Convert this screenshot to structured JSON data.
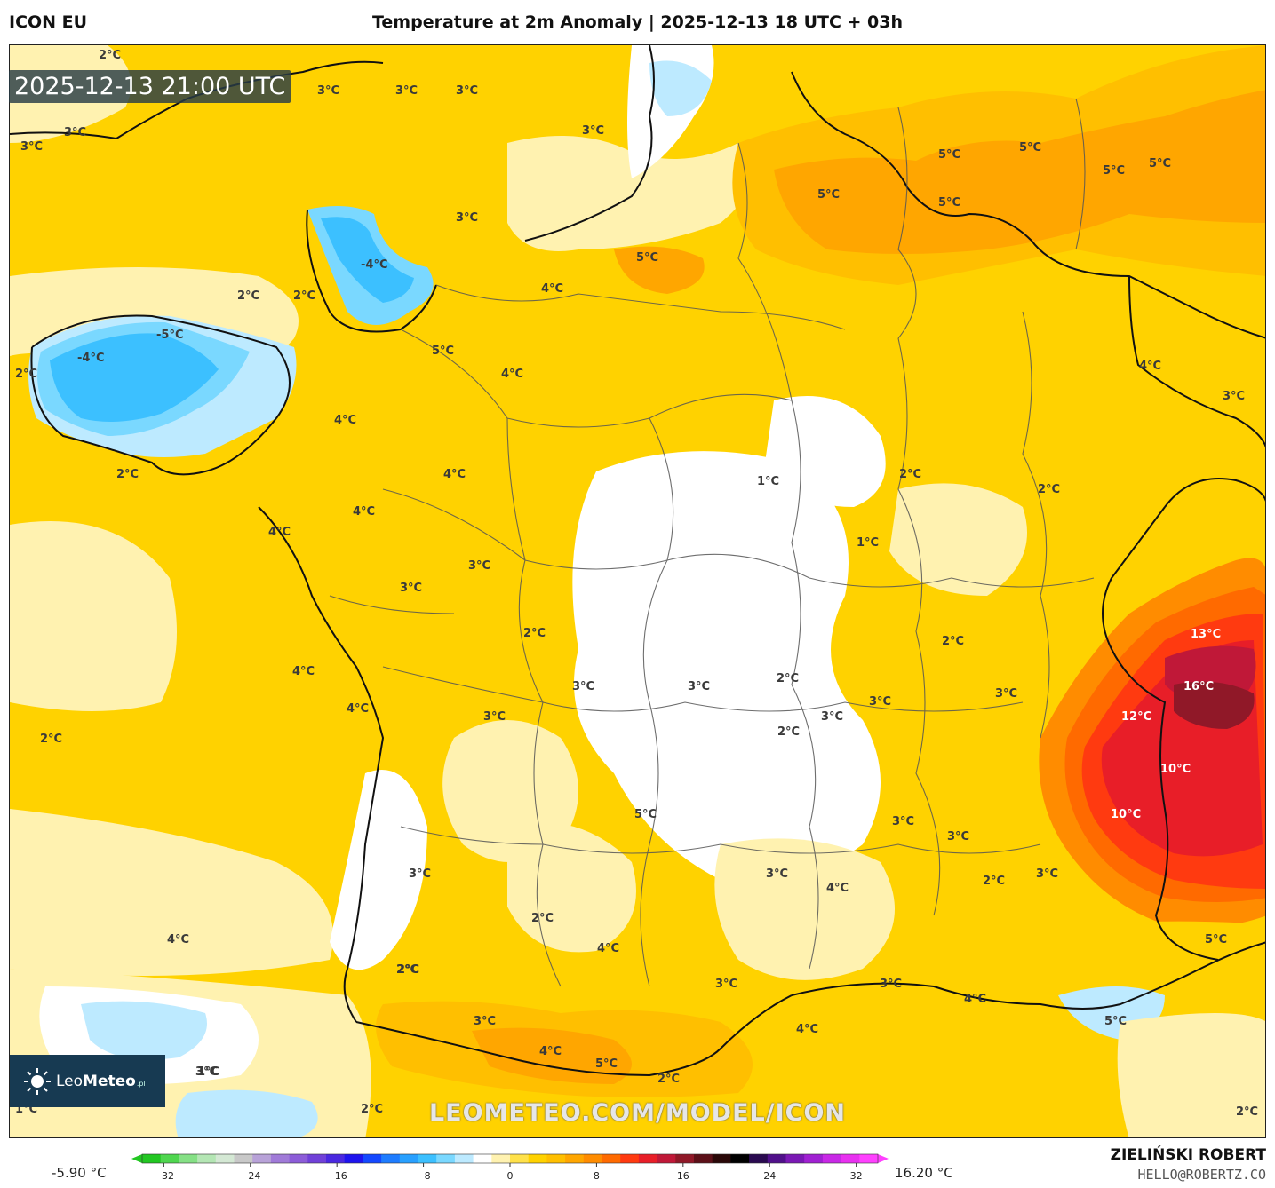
{
  "header": {
    "model": "ICON EU",
    "title": "Temperature at 2m Anomaly | 2025-12-13 18 UTC + 03h"
  },
  "map": {
    "valid_time": "2025-12-13 21:00 UTC",
    "labels": [
      {
        "text": "2°C",
        "tone": "dark"
      },
      {
        "text": "3°C",
        "tone": "dark"
      },
      {
        "text": "3°C",
        "tone": "dark"
      },
      {
        "text": "3°C",
        "tone": "dark"
      },
      {
        "text": "3°C",
        "tone": "dark"
      },
      {
        "text": "3°C",
        "tone": "dark"
      },
      {
        "text": "3°C",
        "tone": "dark"
      },
      {
        "text": "3°C",
        "tone": "dark"
      },
      {
        "text": "-4°C",
        "tone": "dark"
      },
      {
        "text": "2°C",
        "tone": "dark"
      },
      {
        "text": "2°C",
        "tone": "dark"
      },
      {
        "text": "-5°C",
        "tone": "dark"
      },
      {
        "text": "-4°C",
        "tone": "dark"
      },
      {
        "text": "2°C",
        "tone": "dark"
      },
      {
        "text": "5°C",
        "tone": "dark"
      },
      {
        "text": "4°C",
        "tone": "dark"
      },
      {
        "text": "5°C",
        "tone": "dark"
      },
      {
        "text": "4°C",
        "tone": "dark"
      },
      {
        "text": "4°C",
        "tone": "dark"
      },
      {
        "text": "2°C",
        "tone": "dark"
      },
      {
        "text": "4°C",
        "tone": "dark"
      },
      {
        "text": "4°C",
        "tone": "dark"
      },
      {
        "text": "4°C",
        "tone": "dark"
      },
      {
        "text": "3°C",
        "tone": "dark"
      },
      {
        "text": "3°C",
        "tone": "dark"
      },
      {
        "text": "5°C",
        "tone": "dark"
      },
      {
        "text": "5°C",
        "tone": "dark"
      },
      {
        "text": "5°C",
        "tone": "dark"
      },
      {
        "text": "5°C",
        "tone": "dark"
      },
      {
        "text": "5°C",
        "tone": "dark"
      },
      {
        "text": "5°C",
        "tone": "dark"
      },
      {
        "text": "4°C",
        "tone": "dark"
      },
      {
        "text": "3°C",
        "tone": "dark"
      },
      {
        "text": "1°C",
        "tone": "dark"
      },
      {
        "text": "2°C",
        "tone": "dark"
      },
      {
        "text": "2°C",
        "tone": "dark"
      },
      {
        "text": "1°C",
        "tone": "dark"
      },
      {
        "text": "2°C",
        "tone": "dark"
      },
      {
        "text": "3°C",
        "tone": "dark"
      },
      {
        "text": "13°C",
        "tone": "light"
      },
      {
        "text": "16°C",
        "tone": "light"
      },
      {
        "text": "12°C",
        "tone": "light"
      },
      {
        "text": "10°C",
        "tone": "light"
      },
      {
        "text": "10°C",
        "tone": "light"
      },
      {
        "text": "4°C",
        "tone": "dark"
      },
      {
        "text": "4°C",
        "tone": "dark"
      },
      {
        "text": "2°C",
        "tone": "dark"
      },
      {
        "text": "3°C",
        "tone": "dark"
      },
      {
        "text": "3°C",
        "tone": "dark"
      },
      {
        "text": "2°C",
        "tone": "dark"
      },
      {
        "text": "3°C",
        "tone": "dark"
      },
      {
        "text": "2°C",
        "tone": "dark"
      },
      {
        "text": "2°C",
        "tone": "dark"
      },
      {
        "text": "3°C",
        "tone": "dark"
      },
      {
        "text": "3°C",
        "tone": "dark"
      },
      {
        "text": "3°C",
        "tone": "dark"
      },
      {
        "text": "3°C",
        "tone": "dark"
      },
      {
        "text": "3°C",
        "tone": "dark"
      },
      {
        "text": "4°C",
        "tone": "dark"
      },
      {
        "text": "5°C",
        "tone": "dark"
      },
      {
        "text": "2°C",
        "tone": "dark"
      },
      {
        "text": "3°C",
        "tone": "dark"
      },
      {
        "text": "3°C",
        "tone": "dark"
      },
      {
        "text": "2°C",
        "tone": "dark"
      },
      {
        "text": "4°C",
        "tone": "dark"
      },
      {
        "text": "2°C",
        "tone": "dark"
      },
      {
        "text": "3°C",
        "tone": "dark"
      },
      {
        "text": "3°C",
        "tone": "dark"
      },
      {
        "text": "4°C",
        "tone": "dark"
      },
      {
        "text": "4°C",
        "tone": "dark"
      },
      {
        "text": "5°C",
        "tone": "dark"
      },
      {
        "text": "5°C",
        "tone": "dark"
      },
      {
        "text": "4°C",
        "tone": "dark"
      },
      {
        "text": "3°C",
        "tone": "dark"
      },
      {
        "text": "4°C",
        "tone": "dark"
      },
      {
        "text": "5°C",
        "tone": "dark"
      },
      {
        "text": "2°C",
        "tone": "dark"
      },
      {
        "text": "1°C",
        "tone": "dark"
      },
      {
        "text": "1°C",
        "tone": "dark"
      },
      {
        "text": "2°C",
        "tone": "dark"
      },
      {
        "text": "2°C",
        "tone": "dark"
      },
      {
        "text": "3°C",
        "tone": "dark"
      },
      {
        "text": "2°C",
        "tone": "dark"
      }
    ]
  },
  "branding": {
    "logo_text_regular": "Leo",
    "logo_text_bold": "Meteo",
    "logo_suffix": ".pl",
    "watermark": "LEOMETEO.COM/MODEL/ICON"
  },
  "legend": {
    "min_label": "-5.90 °C",
    "max_label": "16.20 °C",
    "ticks": [
      "−32",
      "−24",
      "−16",
      "−8",
      "0",
      "8",
      "16",
      "24",
      "32"
    ],
    "range": [
      -34,
      34
    ],
    "colors": [
      "#22c722",
      "#4fd64f",
      "#85e085",
      "#b4e6b4",
      "#d4e8d4",
      "#c8c8c8",
      "#b8a2d8",
      "#a07ad8",
      "#8c5cd8",
      "#7040d8",
      "#4a28e0",
      "#1e14ee",
      "#1448ff",
      "#1e7cff",
      "#28a0ff",
      "#3cc0ff",
      "#7ad8ff",
      "#bdeaff",
      "#ffffff",
      "#fff2b0",
      "#ffe14a",
      "#ffd200",
      "#ffbf00",
      "#ffa600",
      "#ff8c00",
      "#ff6a00",
      "#ff3a10",
      "#e81e28",
      "#c01838",
      "#901828",
      "#5c1018",
      "#2a0808",
      "#000000",
      "#2a0a50",
      "#50108a",
      "#7a18b4",
      "#a020d2",
      "#c828e6",
      "#e830f0",
      "#ff40ff"
    ]
  },
  "footer": {
    "author": "ZIELIŃSKI ROBERT",
    "email": "HELLO@ROBERTZ.CO"
  }
}
